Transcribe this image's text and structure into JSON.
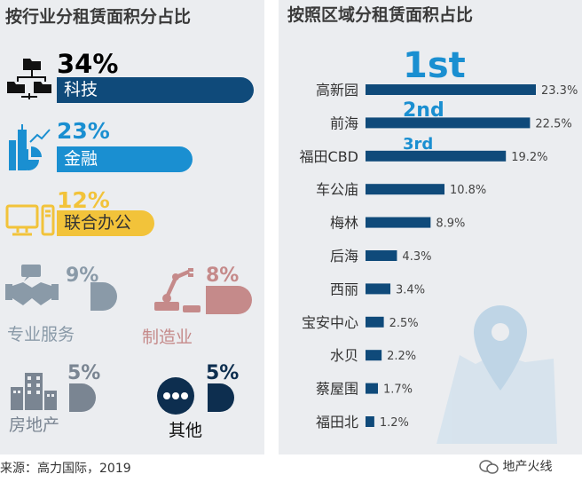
{
  "left": {
    "title": "按行业分租赁面积分占比",
    "items": [
      {
        "name": "科技",
        "pct": "34%",
        "value": 34,
        "color": "#0f4a7a",
        "icon": "org-chart-icon"
      },
      {
        "name": "金融",
        "pct": "23%",
        "value": 23,
        "color": "#1a8fd1",
        "icon": "city-chart-icon"
      },
      {
        "name": "联合办公",
        "pct": "12%",
        "value": 12,
        "color": "#f2c33a",
        "icon": "desktop-computer-icon"
      },
      {
        "name": "专业服务",
        "pct": "9%",
        "value": 9,
        "color": "#8a9aa8",
        "icon": "handshake-icon"
      },
      {
        "name": "制造业",
        "pct": "8%",
        "value": 8,
        "color": "#c58a8a",
        "icon": "robot-arm-icon"
      },
      {
        "name": "房地产",
        "pct": "5%",
        "value": 5,
        "color": "#7a8592",
        "icon": "building-icon"
      },
      {
        "name": "其他",
        "pct": "5%",
        "value": 5,
        "color": "#0d2e4f",
        "icon": "ellipsis-circle-icon"
      }
    ]
  },
  "chart_data": {
    "type": "bar",
    "orientation": "horizontal",
    "title": "按照区域分租赁面积占比",
    "categories": [
      "高新园",
      "前海",
      "福田CBD",
      "车公庙",
      "梅林",
      "后海",
      "西丽",
      "宝安中心",
      "水贝",
      "蔡屋围",
      "福田北"
    ],
    "values": [
      23.3,
      22.5,
      19.2,
      10.8,
      8.9,
      4.3,
      3.4,
      2.5,
      2.2,
      1.7,
      1.2
    ],
    "value_labels": [
      "23.3%",
      "22.5%",
      "19.2%",
      "10.8%",
      "8.9%",
      "4.3%",
      "3.4%",
      "2.5%",
      "2.2%",
      "1.7%",
      "1.2%"
    ],
    "rank_labels": [
      "1st",
      "2nd",
      "3rd"
    ],
    "bar_color": "#0f4a7a",
    "rank_color": "#1a8fd1",
    "background_icon": "map-pin-icon",
    "xlim": [
      0,
      23.3
    ]
  },
  "footer": {
    "source": "来源：高力国际，2019",
    "watermark": "地产火线",
    "watermark_icon": "wechat-icon"
  }
}
